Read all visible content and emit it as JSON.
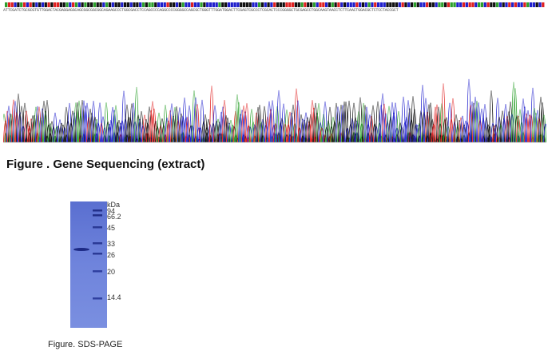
{
  "sequencing": {
    "sequence_text": "ATTCGATCTGCGCGTGTTGGACTACGAGGAGGCAGCGGCGGCGGCAGAAGCCCTGGCGACCTCCAGCCCCAGGCCCCGGGGCCAGCGCTGGGTTTGGATGGACTTCGAGTCGCCCTCGCACTCCCGGGGCTGCGAGCCTGGCAAGTAACCTCTTCAACTGGACGCTCTCCTACCGCT",
    "colors": {
      "A": "#2ca02c",
      "C": "#1f1fcc",
      "G": "#111111",
      "T": "#e02020"
    },
    "caption": "Figure . Gene Sequencing (extract)"
  },
  "sds_page": {
    "unit": "kDa",
    "markers": [
      "94",
      "66.2",
      "45",
      "33",
      "26",
      "20",
      "14.4"
    ],
    "caption": "Figure. SDS-PAGE"
  }
}
